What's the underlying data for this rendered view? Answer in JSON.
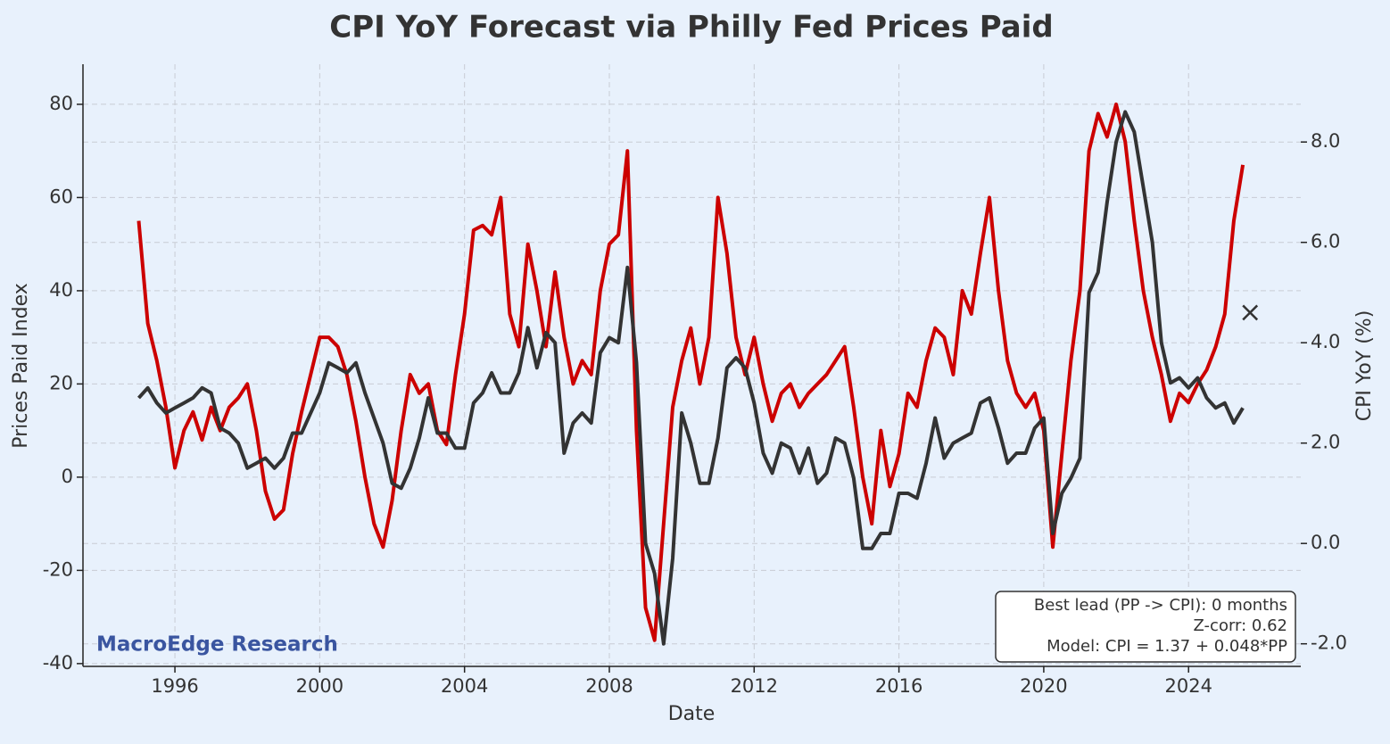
{
  "chart_data": {
    "type": "line",
    "title": "CPI YoY Forecast via Philly Fed Prices Paid",
    "xlabel": "Date",
    "ylabel": "Prices Paid Index",
    "y2label": "CPI YoY (%)",
    "watermark": "MacroEdge Research",
    "annotation": [
      "Best lead (PP -> CPI): 0 months",
      "Z-corr: 0.62",
      "Model: CPI = 1.37 + 0.048*PP"
    ],
    "grid": true,
    "xlim": [
      1993.46,
      2027.1
    ],
    "xticks": [
      1996,
      2000,
      2004,
      2008,
      2012,
      2016,
      2020,
      2024
    ],
    "ylim": [
      -40.6,
      88.6
    ],
    "yticks": [
      -40,
      -20,
      0,
      20,
      40,
      60,
      80
    ],
    "y2lim": [
      -2.45,
      9.55
    ],
    "y2ticks": [
      {
        "value": -2,
        "label": "-2.0"
      },
      {
        "value": 0,
        "label": "0.0"
      },
      {
        "value": 2,
        "label": "2.0"
      },
      {
        "value": 4,
        "label": "4.0"
      },
      {
        "value": 6,
        "label": "6.0"
      },
      {
        "value": 8,
        "label": "8.0"
      }
    ],
    "x": [
      1995,
      1995.25,
      1995.5,
      1995.75,
      1996,
      1996.25,
      1996.5,
      1996.75,
      1997,
      1997.25,
      1997.5,
      1997.75,
      1998,
      1998.25,
      1998.5,
      1998.75,
      1999,
      1999.25,
      1999.5,
      1999.75,
      2000,
      2000.25,
      2000.5,
      2000.75,
      2001,
      2001.25,
      2001.5,
      2001.75,
      2002,
      2002.25,
      2002.5,
      2002.75,
      2003,
      2003.25,
      2003.5,
      2003.75,
      2004,
      2004.25,
      2004.5,
      2004.75,
      2005,
      2005.25,
      2005.5,
      2005.75,
      2006,
      2006.25,
      2006.5,
      2006.75,
      2007,
      2007.25,
      2007.5,
      2007.75,
      2008,
      2008.25,
      2008.5,
      2008.75,
      2009,
      2009.25,
      2009.5,
      2009.75,
      2010,
      2010.25,
      2010.5,
      2010.75,
      2011,
      2011.25,
      2011.5,
      2011.75,
      2012,
      2012.25,
      2012.5,
      2012.75,
      2013,
      2013.25,
      2013.5,
      2013.75,
      2014,
      2014.25,
      2014.5,
      2014.75,
      2015,
      2015.25,
      2015.5,
      2015.75,
      2016,
      2016.25,
      2016.5,
      2016.75,
      2017,
      2017.25,
      2017.5,
      2017.75,
      2018,
      2018.25,
      2018.5,
      2018.75,
      2019,
      2019.25,
      2019.5,
      2019.75,
      2020,
      2020.25,
      2020.5,
      2020.75,
      2021,
      2021.25,
      2021.5,
      2021.75,
      2022,
      2022.25,
      2022.5,
      2022.75,
      2023,
      2023.25,
      2023.5,
      2023.75,
      2024,
      2024.25,
      2024.5,
      2024.75,
      2025,
      2025.25,
      2025.5
    ],
    "series": [
      {
        "color": "#cc0000",
        "axis": "y",
        "values": [
          55,
          33,
          25,
          15,
          2,
          10,
          14,
          8,
          15,
          10,
          15,
          17,
          20,
          10,
          -3,
          -9,
          -7,
          5,
          14,
          22,
          30,
          30,
          28,
          22,
          12,
          0,
          -10,
          -15,
          -5,
          10,
          22,
          18,
          20,
          10,
          7,
          22,
          35,
          53,
          54,
          52,
          60,
          35,
          28,
          50,
          40,
          28,
          44,
          30,
          20,
          25,
          22,
          40,
          50,
          52,
          70,
          10,
          -28,
          -35,
          -10,
          15,
          25,
          32,
          20,
          30,
          60,
          48,
          30,
          22,
          30,
          20,
          12,
          18,
          20,
          15,
          18,
          20,
          22,
          25,
          28,
          15,
          0,
          -10,
          10,
          -2,
          5,
          18,
          15,
          25,
          32,
          30,
          22,
          40,
          35,
          48,
          60,
          40,
          25,
          18,
          15,
          18,
          10,
          -15,
          5,
          25,
          40,
          70,
          78,
          73,
          80,
          72,
          55,
          40,
          30,
          22,
          12,
          18,
          16,
          20,
          23,
          28,
          35,
          55,
          67
        ]
      },
      {
        "color": "#333333",
        "axis": "y2",
        "values": [
          2.9,
          3.1,
          2.8,
          2.6,
          2.7,
          2.8,
          2.9,
          3.1,
          3.0,
          2.3,
          2.2,
          2.0,
          1.5,
          1.6,
          1.7,
          1.5,
          1.7,
          2.2,
          2.2,
          2.6,
          3.0,
          3.6,
          3.5,
          3.4,
          3.6,
          3.0,
          2.5,
          2.0,
          1.2,
          1.1,
          1.5,
          2.1,
          2.9,
          2.2,
          2.2,
          1.9,
          1.9,
          2.8,
          3.0,
          3.4,
          3.0,
          3.0,
          3.4,
          4.3,
          3.5,
          4.2,
          4.0,
          1.8,
          2.4,
          2.6,
          2.4,
          3.8,
          4.1,
          4.0,
          5.5,
          3.6,
          0.0,
          -0.6,
          -2.0,
          -0.3,
          2.6,
          2.0,
          1.2,
          1.2,
          2.1,
          3.5,
          3.7,
          3.5,
          2.8,
          1.8,
          1.4,
          2.0,
          1.9,
          1.4,
          1.9,
          1.2,
          1.4,
          2.1,
          2.0,
          1.3,
          -0.1,
          -0.1,
          0.2,
          0.2,
          1.0,
          1.0,
          0.9,
          1.6,
          2.5,
          1.7,
          2.0,
          2.1,
          2.2,
          2.8,
          2.9,
          2.3,
          1.6,
          1.8,
          1.8,
          2.3,
          2.5,
          0.2,
          1.0,
          1.3,
          1.7,
          5.0,
          5.4,
          6.8,
          8.0,
          8.6,
          8.2,
          7.1,
          6.0,
          4.0,
          3.2,
          3.3,
          3.1,
          3.3,
          2.9,
          2.7,
          2.8,
          2.4,
          2.7
        ]
      }
    ],
    "marker": {
      "x": 2025.7,
      "y": 4.6,
      "axis": "y2",
      "color": "#333333"
    }
  }
}
